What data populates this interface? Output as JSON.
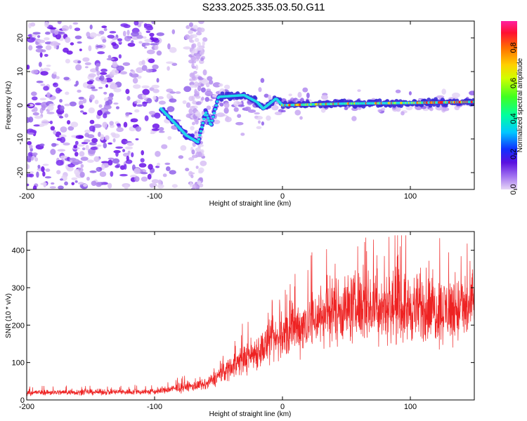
{
  "title": "S233.2025.335.03.50.G11",
  "chart_data": [
    {
      "type": "heatmap",
      "title": "S233.2025.335.03.50.G11",
      "xlabel": "Height of straight line (km)",
      "ylabel": "Frequency (Hz)",
      "xlim": [
        -200,
        150
      ],
      "ylim": [
        -25,
        25
      ],
      "xticks": [
        -200,
        -100,
        0,
        100
      ],
      "yticks": [
        -20,
        -10,
        0,
        10,
        20
      ],
      "colorbar": {
        "label": "Normalized spectral amplitude",
        "range": [
          0,
          0.95
        ],
        "ticks": [
          "0.0",
          "0.2",
          "0.4",
          "0.6",
          "0.8"
        ],
        "tick_values": [
          0,
          0.2,
          0.4,
          0.6,
          0.8
        ]
      },
      "ridge": {
        "description_points": [
          {
            "x": -95,
            "y": -1
          },
          {
            "x": -85,
            "y": -5
          },
          {
            "x": -75,
            "y": -9
          },
          {
            "x": -66,
            "y": -11
          },
          {
            "x": -60,
            "y": -2
          },
          {
            "x": -56,
            "y": -6
          },
          {
            "x": -50,
            "y": 2.5
          },
          {
            "x": -30,
            "y": 3
          },
          {
            "x": -20,
            "y": 1
          },
          {
            "x": -15,
            "y": -1
          },
          {
            "x": -5,
            "y": 2
          },
          {
            "x": 0,
            "y": 0
          },
          {
            "x": 50,
            "y": 0.5
          },
          {
            "x": 100,
            "y": 0.7
          },
          {
            "x": 150,
            "y": 1
          }
        ]
      }
    },
    {
      "type": "line",
      "xlabel": "Height of straight line (km)",
      "ylabel": "SNR (10 * v/v)",
      "xlim": [
        -200,
        150
      ],
      "ylim": [
        0,
        450
      ],
      "xticks": [
        -200,
        -100,
        0,
        100
      ],
      "yticks": [
        0,
        100,
        200,
        300,
        400
      ],
      "series": [
        {
          "name": "SNR",
          "color": "#ee2222",
          "envelope_mean": [
            {
              "x": -200,
              "y": 20
            },
            {
              "x": -100,
              "y": 22
            },
            {
              "x": -75,
              "y": 35
            },
            {
              "x": -60,
              "y": 40
            },
            {
              "x": -40,
              "y": 90
            },
            {
              "x": -20,
              "y": 130
            },
            {
              "x": 0,
              "y": 170
            },
            {
              "x": 20,
              "y": 210
            },
            {
              "x": 40,
              "y": 240
            },
            {
              "x": 60,
              "y": 250
            },
            {
              "x": 80,
              "y": 250
            },
            {
              "x": 100,
              "y": 245
            },
            {
              "x": 120,
              "y": 240
            },
            {
              "x": 150,
              "y": 245
            }
          ],
          "peak_max": 440
        }
      ]
    }
  ],
  "colors": {
    "line": "#ee2222",
    "frame": "#000000"
  }
}
